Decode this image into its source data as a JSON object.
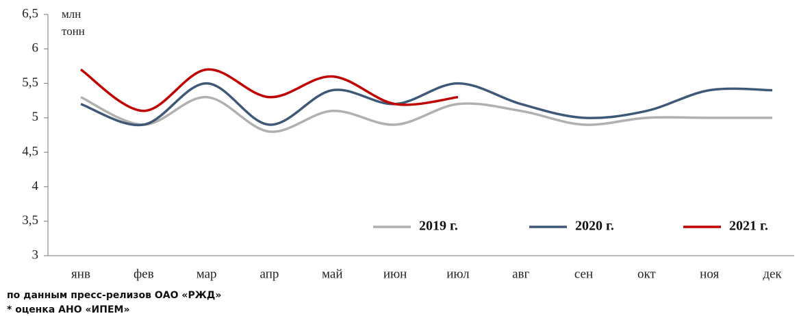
{
  "chart_data": {
    "type": "line",
    "ylabel": [
      "млн",
      "тонн"
    ],
    "categories": [
      "янв",
      "фев",
      "мар",
      "апр",
      "май",
      "июн",
      "июл",
      "авг",
      "сен",
      "окт",
      "ноя",
      "дек"
    ],
    "series": [
      {
        "name": "2019 г.",
        "color": "#b0b0b0",
        "values": [
          5.3,
          4.9,
          5.3,
          4.8,
          5.1,
          4.9,
          5.2,
          5.1,
          4.9,
          5.0,
          5.0,
          5.0
        ]
      },
      {
        "name": "2020 г.",
        "color": "#3e5878",
        "values": [
          5.2,
          4.9,
          5.5,
          4.9,
          5.4,
          5.2,
          5.5,
          5.2,
          5.0,
          5.1,
          5.4,
          5.4
        ]
      },
      {
        "name": "2021 г.",
        "color": "#c00000",
        "values": [
          5.7,
          5.1,
          5.7,
          5.3,
          5.6,
          5.2,
          5.3,
          null,
          null,
          null,
          null,
          null
        ]
      }
    ],
    "ylim": [
      3,
      6.5
    ],
    "yticks": [
      3,
      {
        "value": 3.5,
        "label": "3,5"
      },
      4,
      {
        "value": 4.5,
        "label": "4,5"
      },
      5,
      {
        "value": 5.5,
        "label": "5,5"
      },
      6,
      {
        "value": 6.5,
        "label": "6,5"
      }
    ],
    "legend": "lower right",
    "notes": [
      "по данным пресс-релизов ОАО «РЖД»",
      "* оценка АНО «ИПЕМ»"
    ]
  }
}
